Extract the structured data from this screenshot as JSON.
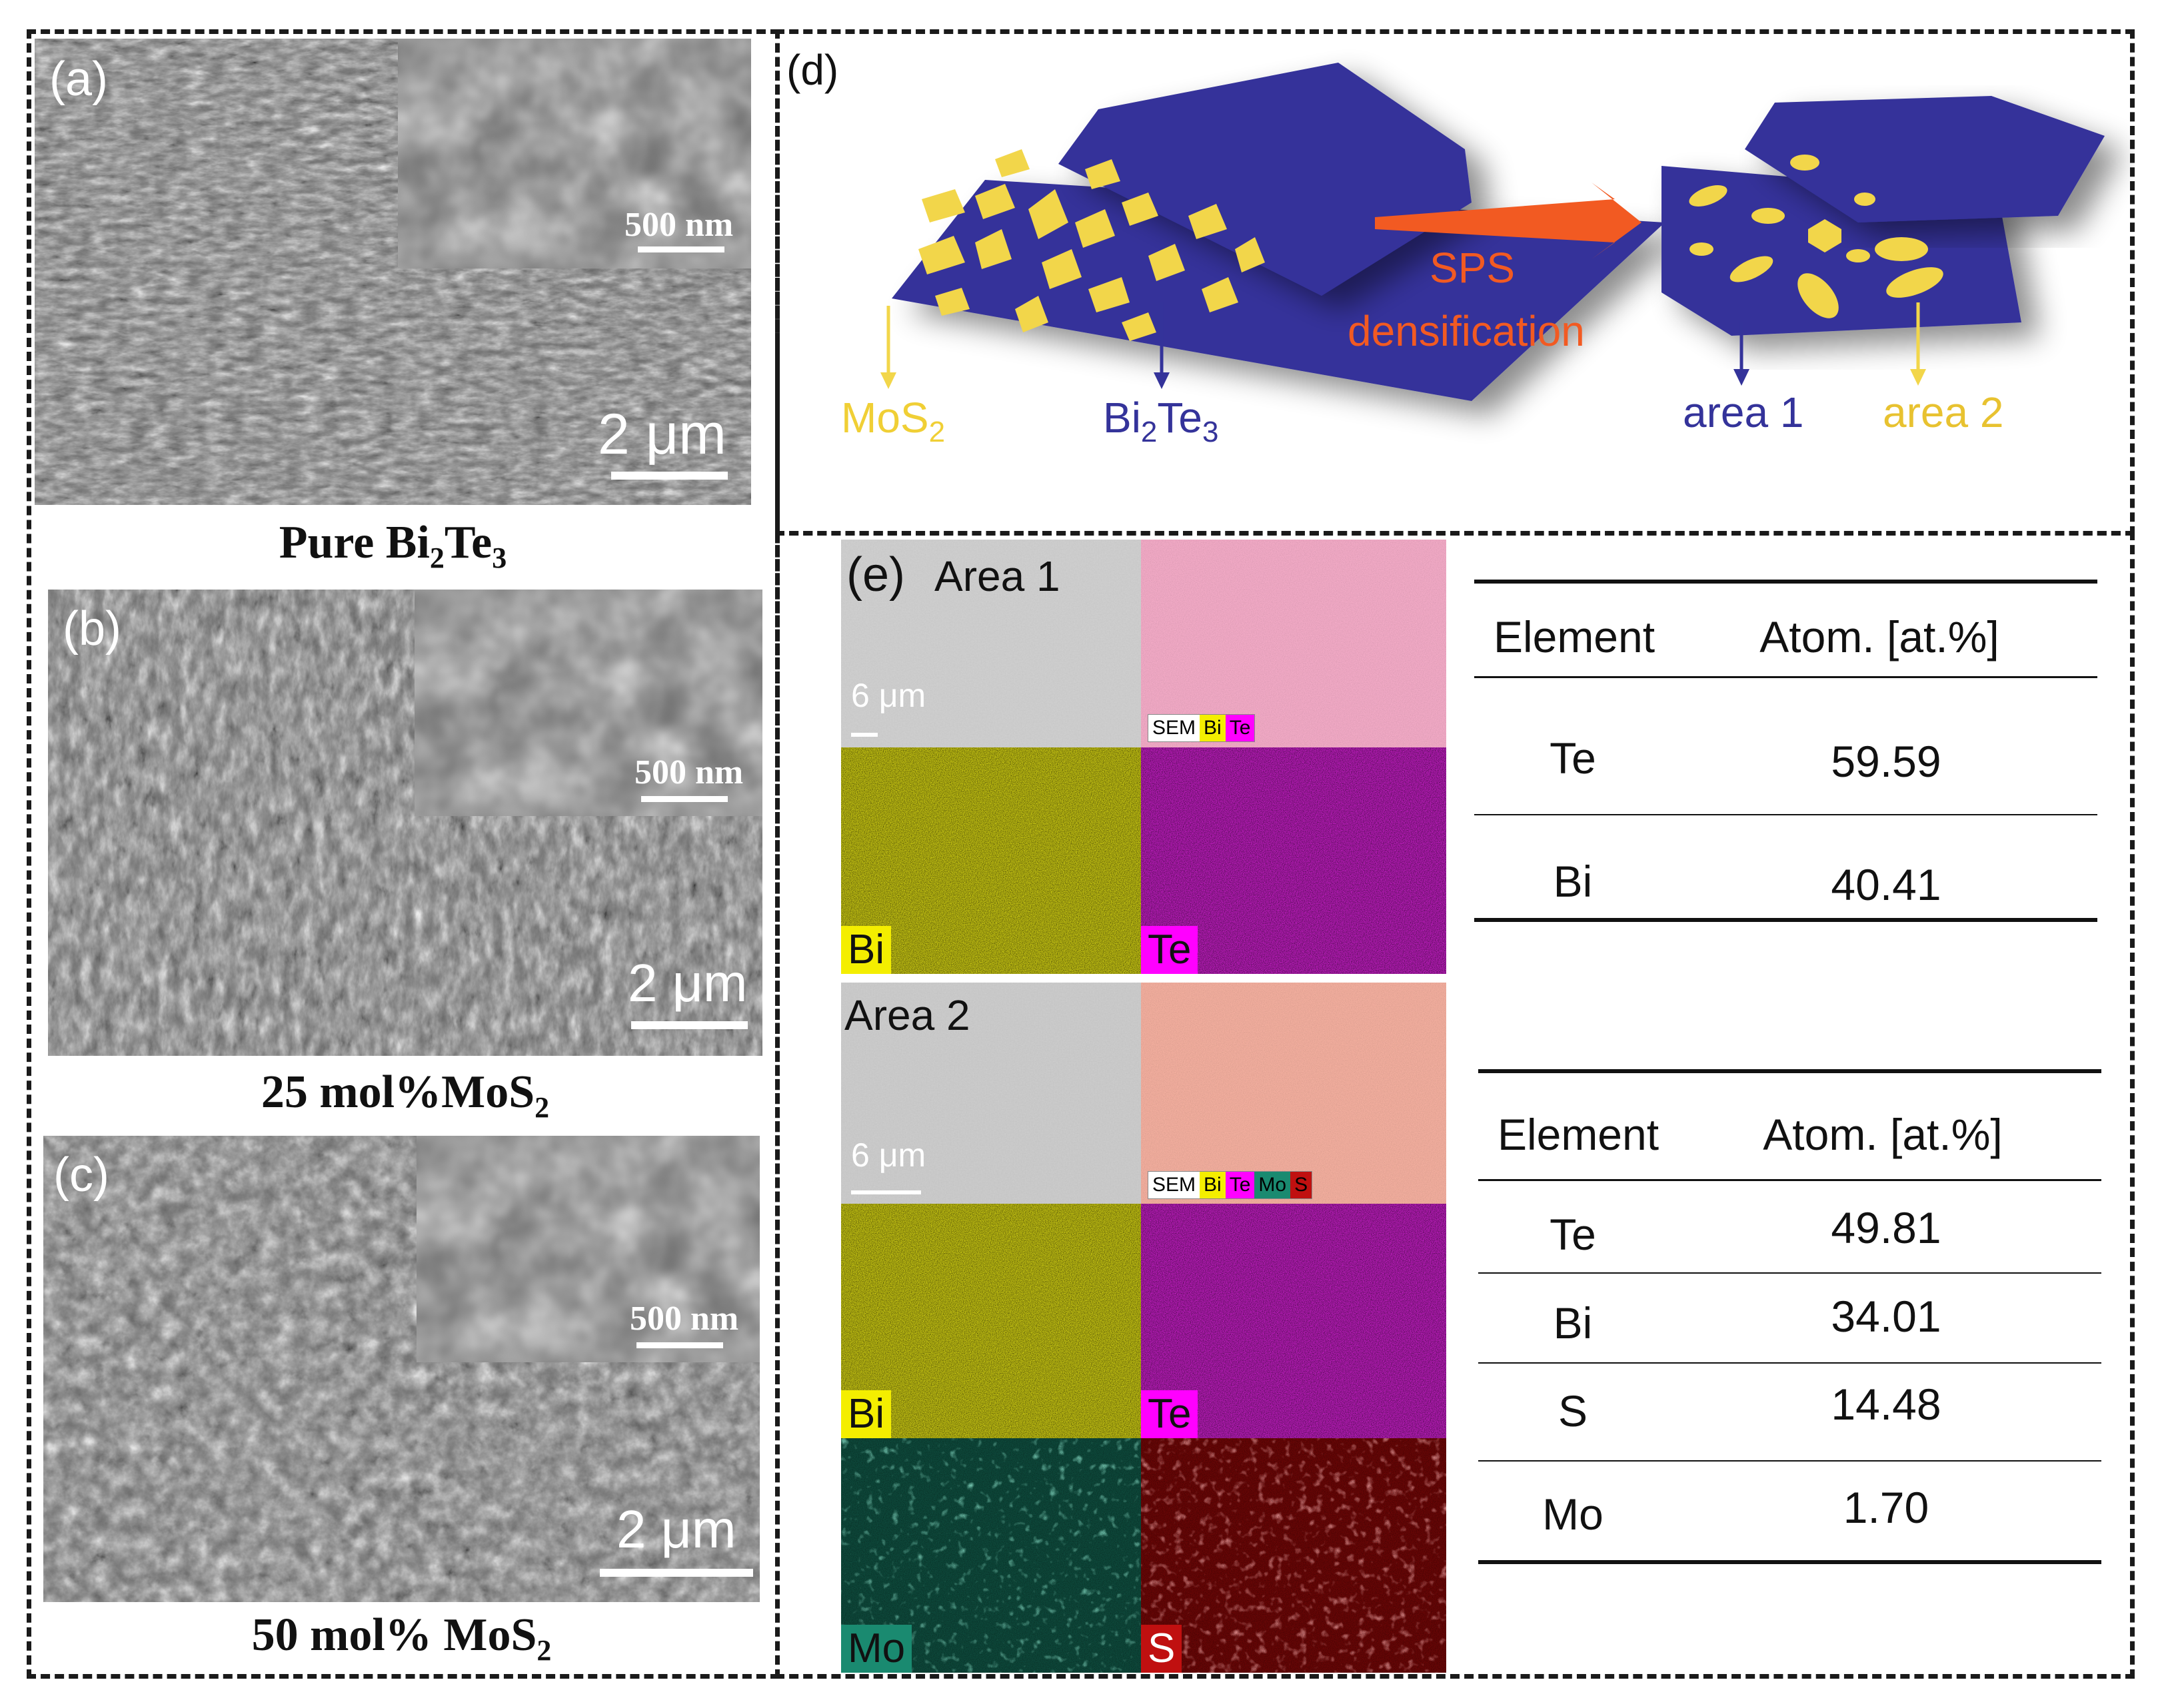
{
  "panels": {
    "a": {
      "label": "(a)",
      "inset_scale": "500 nm",
      "scale": "2 μm",
      "caption_main": "Pure Bi",
      "caption_sub1": "2",
      "caption_mid": "Te",
      "caption_sub2": "3"
    },
    "b": {
      "label": "(b)",
      "inset_scale": "500 nm",
      "scale": "2 μm",
      "caption_main": "25 mol%MoS",
      "caption_sub1": "2"
    },
    "c": {
      "label": "(c)",
      "inset_scale": "500 nm",
      "scale": "2 μm",
      "caption_main": "50 mol% MoS",
      "caption_sub1": "2"
    }
  },
  "schematic": {
    "label": "(d)",
    "mos2_main": "MoS",
    "mos2_sub": "2",
    "bi2te3_a": "Bi",
    "bi2te3_s1": "2",
    "bi2te3_b": "Te",
    "bi2te3_s2": "3",
    "process_line1": "SPS",
    "process_line2": "densification",
    "area1": "area 1",
    "area2": "area 2",
    "colors": {
      "grain": "#34339a",
      "mos2": "#f2d64a",
      "arrow": "#f25a22",
      "area2_text": "#e8c230"
    }
  },
  "eds": {
    "label": "(e)",
    "area1_title": "Area 1",
    "area2_title": "Area 2",
    "scale": "6 μm",
    "legend1": [
      "SEM",
      "Bi",
      "Te"
    ],
    "legend2": [
      "SEM",
      "Bi",
      "Te",
      "Mo",
      "S"
    ],
    "tags": {
      "bi": "Bi",
      "te": "Te",
      "mo": "Mo",
      "s": "S"
    },
    "colors": {
      "bi": "#d6d400",
      "te": "#d000d0",
      "mo": "#1a8a70",
      "s": "#c01010"
    }
  },
  "table1": {
    "headers": [
      "Element",
      "Atom. [at.%]"
    ],
    "rows": [
      [
        "Te",
        "59.59"
      ],
      [
        "Bi",
        "40.41"
      ]
    ]
  },
  "table2": {
    "headers": [
      "Element",
      "Atom. [at.%]"
    ],
    "rows": [
      [
        "Te",
        "49.81"
      ],
      [
        "Bi",
        "34.01"
      ],
      [
        "S",
        "14.48"
      ],
      [
        "Mo",
        "1.70"
      ]
    ]
  }
}
